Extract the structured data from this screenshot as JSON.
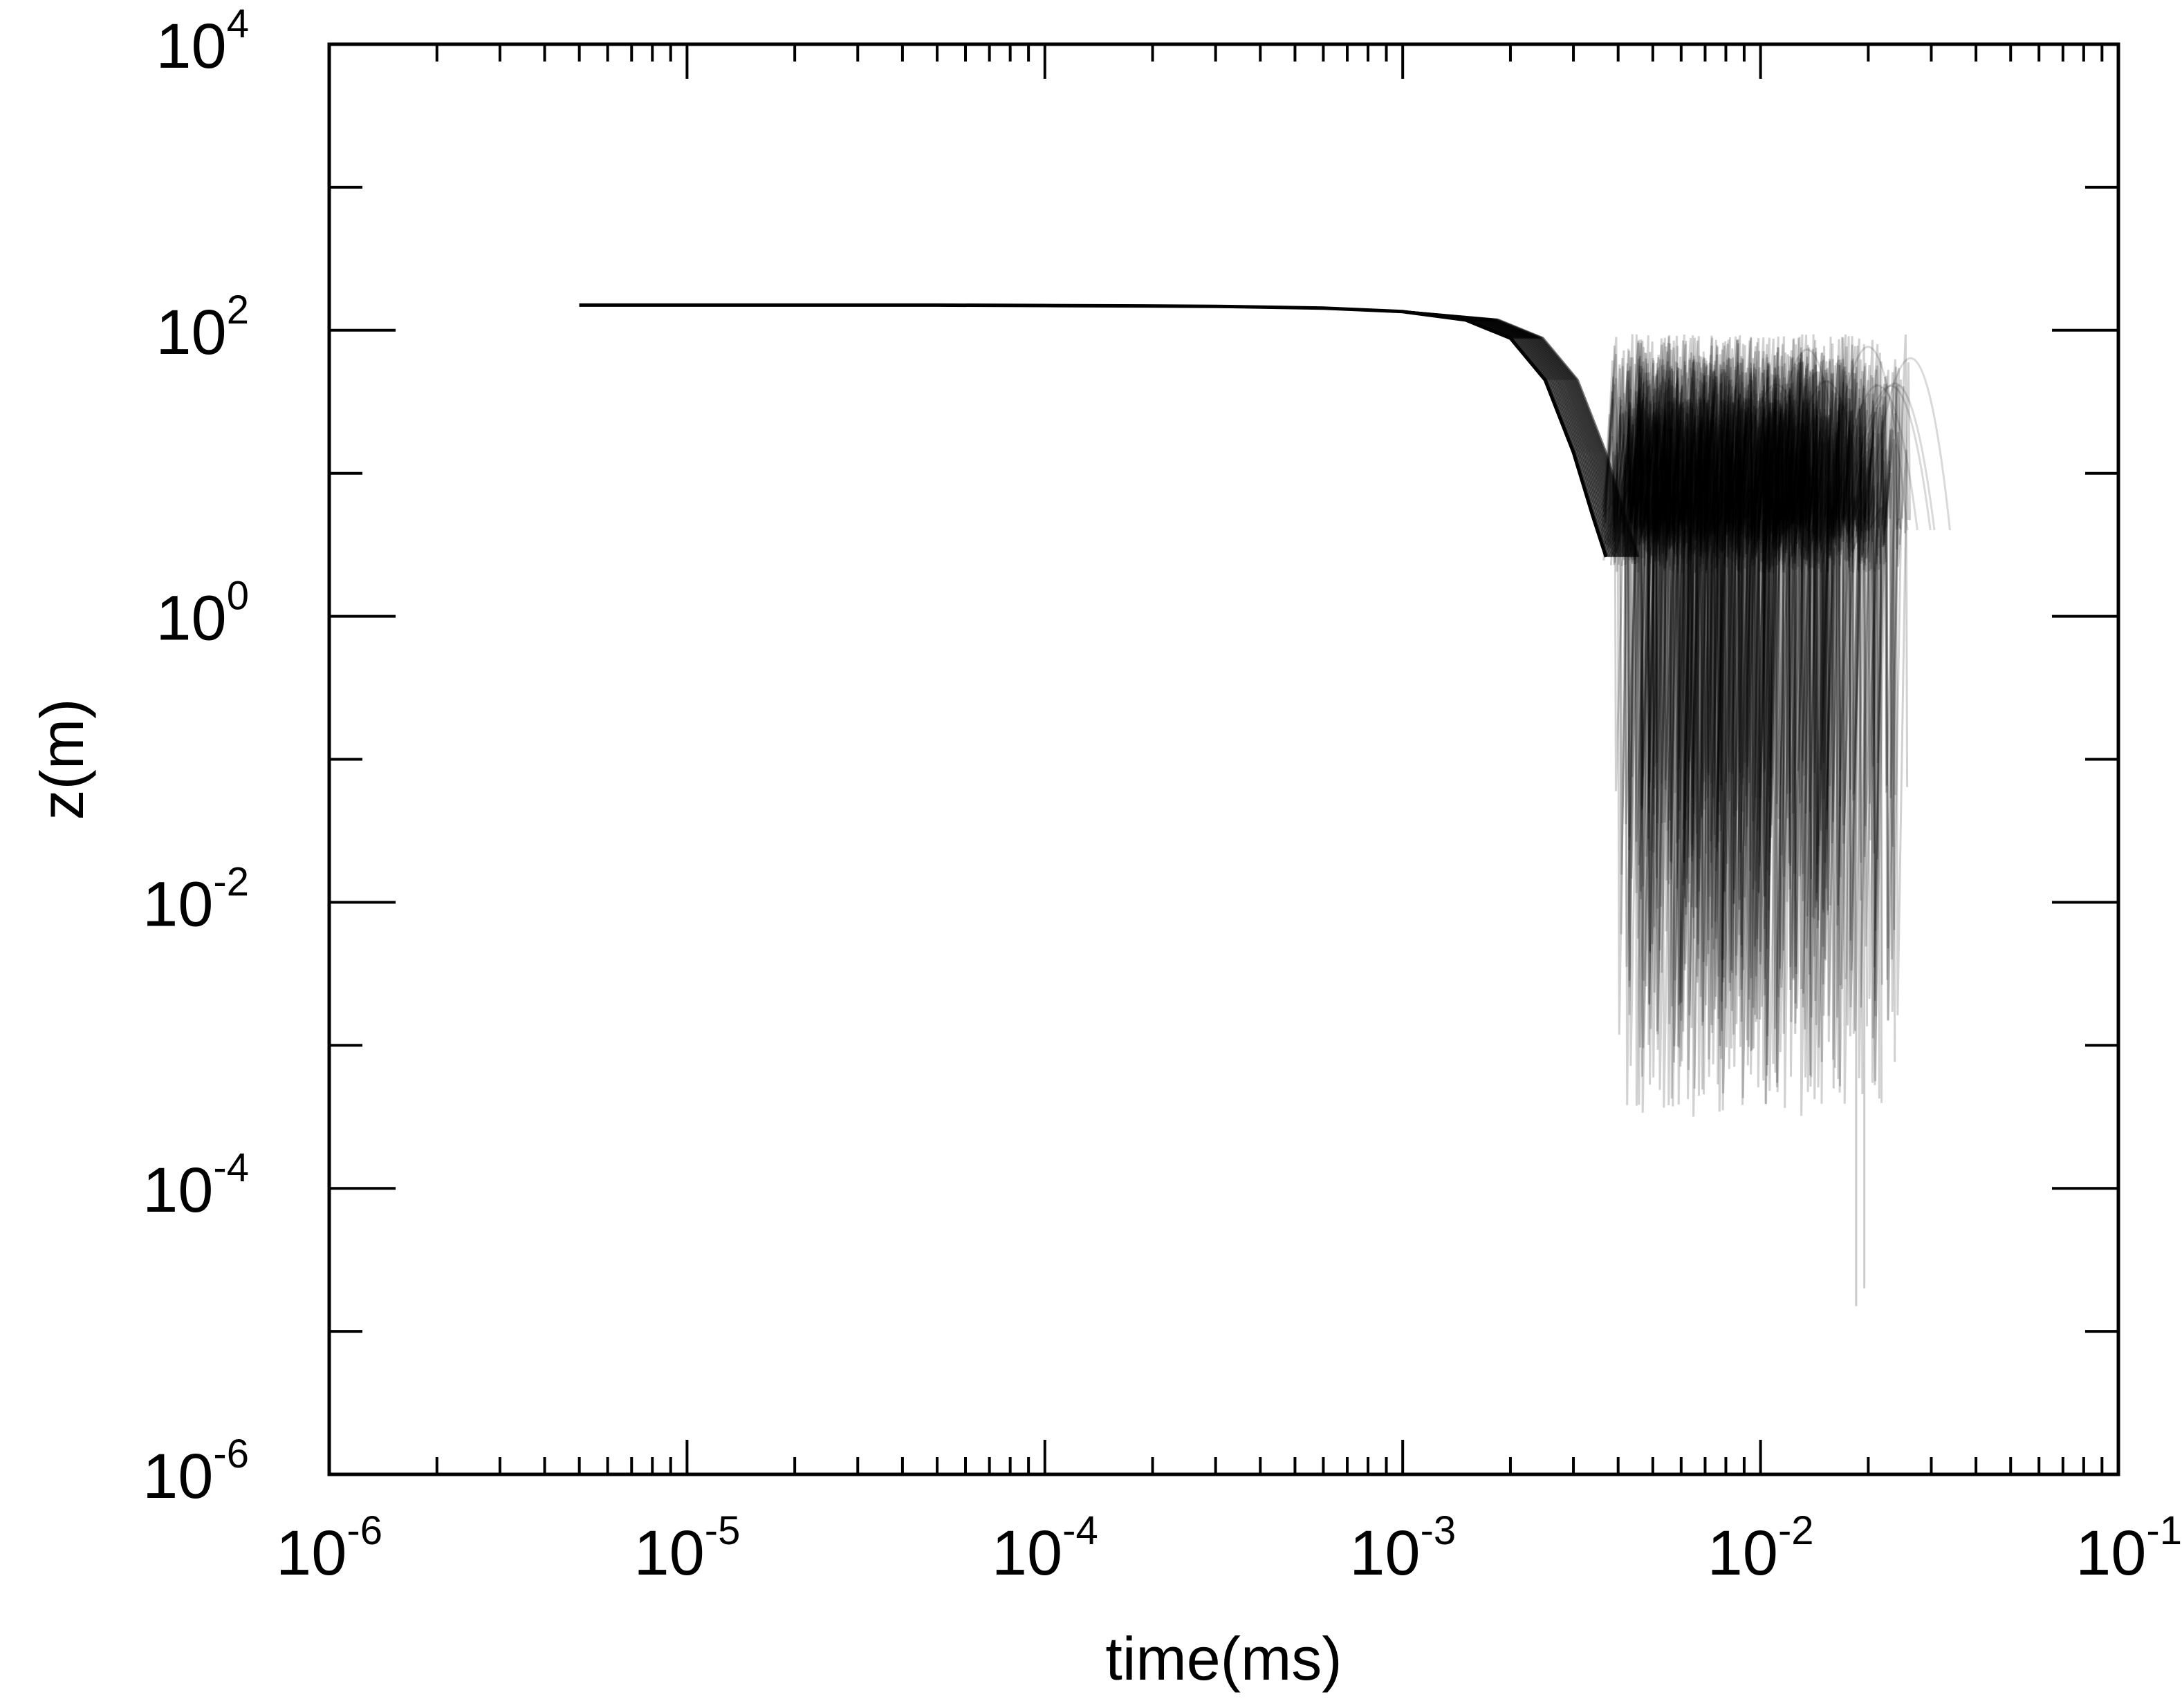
{
  "chart_data": {
    "type": "line",
    "title": "",
    "xlabel": "time(ms)",
    "ylabel": "z(m)",
    "xscale": "log",
    "yscale": "log",
    "xlim": [
      1e-06,
      0.1
    ],
    "ylim": [
      1e-06,
      10000
    ],
    "grid": false,
    "legend": "none",
    "line_color": "#000000",
    "x_ticks": [
      {
        "base": "10",
        "exp": "-6"
      },
      {
        "base": "10",
        "exp": "-5"
      },
      {
        "base": "10",
        "exp": "-4"
      },
      {
        "base": "10",
        "exp": "-3"
      },
      {
        "base": "10",
        "exp": "-2"
      },
      {
        "base": "10",
        "exp": "-1"
      }
    ],
    "y_ticks": [
      {
        "base": "10",
        "exp": "-6"
      },
      {
        "base": "10",
        "exp": "-4"
      },
      {
        "base": "10",
        "exp": "-2"
      },
      {
        "base": "10",
        "exp": "0"
      },
      {
        "base": "10",
        "exp": "2"
      },
      {
        "base": "10",
        "exp": "4"
      }
    ],
    "series": [
      {
        "values": [
          [
            5e-06,
            150
          ],
          [
            1e-05,
            150
          ],
          [
            5e-05,
            150
          ],
          [
            0.0001,
            149
          ],
          [
            0.0003,
            147
          ],
          [
            0.0006,
            143
          ],
          [
            0.001,
            135
          ],
          [
            0.0015,
            118
          ],
          [
            0.002,
            88
          ],
          [
            0.0025,
            45
          ],
          [
            0.003,
            14
          ],
          [
            0.0034,
            5
          ],
          [
            0.0037,
            2.6
          ]
        ]
      }
    ]
  }
}
